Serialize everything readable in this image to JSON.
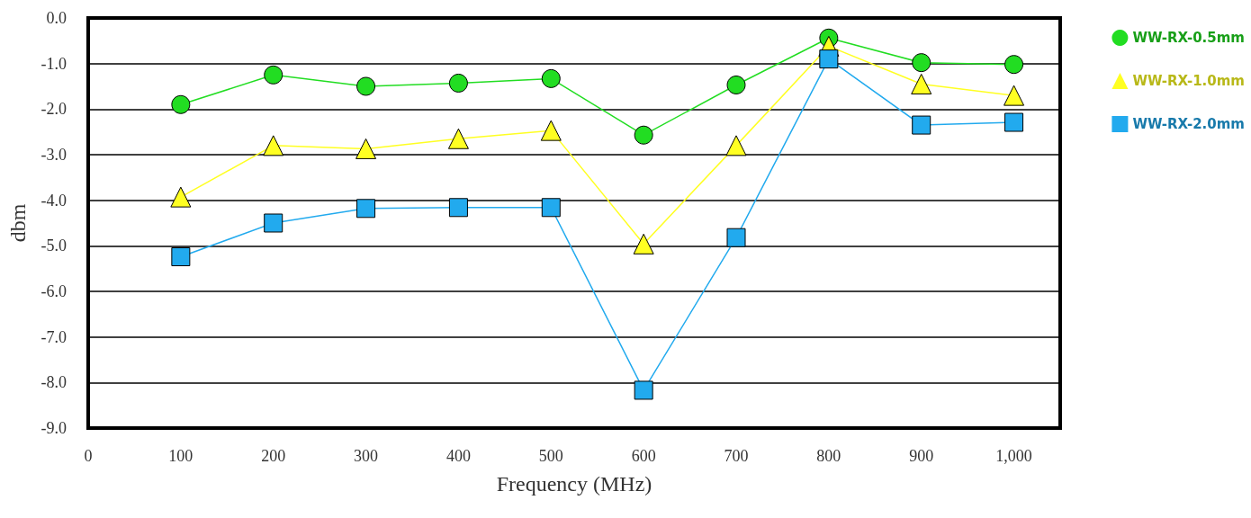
{
  "chart_data": {
    "type": "line",
    "xlabel": "Frequency (MHz)",
    "ylabel": "dbm",
    "x": [
      100,
      200,
      300,
      400,
      500,
      600,
      700,
      800,
      900,
      1000
    ],
    "xlim": [
      0,
      1050
    ],
    "xticks": [
      0,
      100,
      200,
      300,
      400,
      500,
      600,
      700,
      800,
      900,
      {
        "value": 1000,
        "label": "1,000"
      }
    ],
    "ylim": [
      -9,
      0
    ],
    "yticks": [
      {
        "value": -9,
        "label": "-9.0"
      },
      {
        "value": -8,
        "label": "-8.0"
      },
      {
        "value": -7,
        "label": "-7.0"
      },
      {
        "value": -6,
        "label": "-6.0"
      },
      {
        "value": -5,
        "label": "-5.0"
      },
      {
        "value": -4,
        "label": "-4.0"
      },
      {
        "value": -3,
        "label": "-3.0"
      },
      {
        "value": -2,
        "label": "-2.0"
      },
      {
        "value": -1,
        "label": "-1.0"
      },
      {
        "value": 0,
        "label": "0.0"
      }
    ],
    "grid": "y",
    "legend": "top right",
    "line_style": "solid",
    "series": [
      {
        "name": "WW-RX-0.5mm",
        "color": "#22dd22",
        "marker": "circle",
        "values": [
          -1.9,
          -1.25,
          -1.5,
          -1.43,
          -1.33,
          -2.57,
          -1.47,
          -0.44,
          -0.98,
          -1.02
        ]
      },
      {
        "name": "WW-RX-1.0mm",
        "color": "#ffff22",
        "marker": "triangle",
        "values": [
          -3.93,
          -2.8,
          -2.87,
          -2.65,
          -2.47,
          -4.96,
          -2.8,
          -0.62,
          -1.45,
          -1.7
        ]
      },
      {
        "name": "WW-RX-2.0mm",
        "color": "#22aaee",
        "marker": "square",
        "values": [
          -5.24,
          -4.5,
          -4.18,
          -4.16,
          -4.16,
          -8.17,
          -4.82,
          -0.9,
          -2.35,
          -2.29
        ]
      }
    ]
  }
}
